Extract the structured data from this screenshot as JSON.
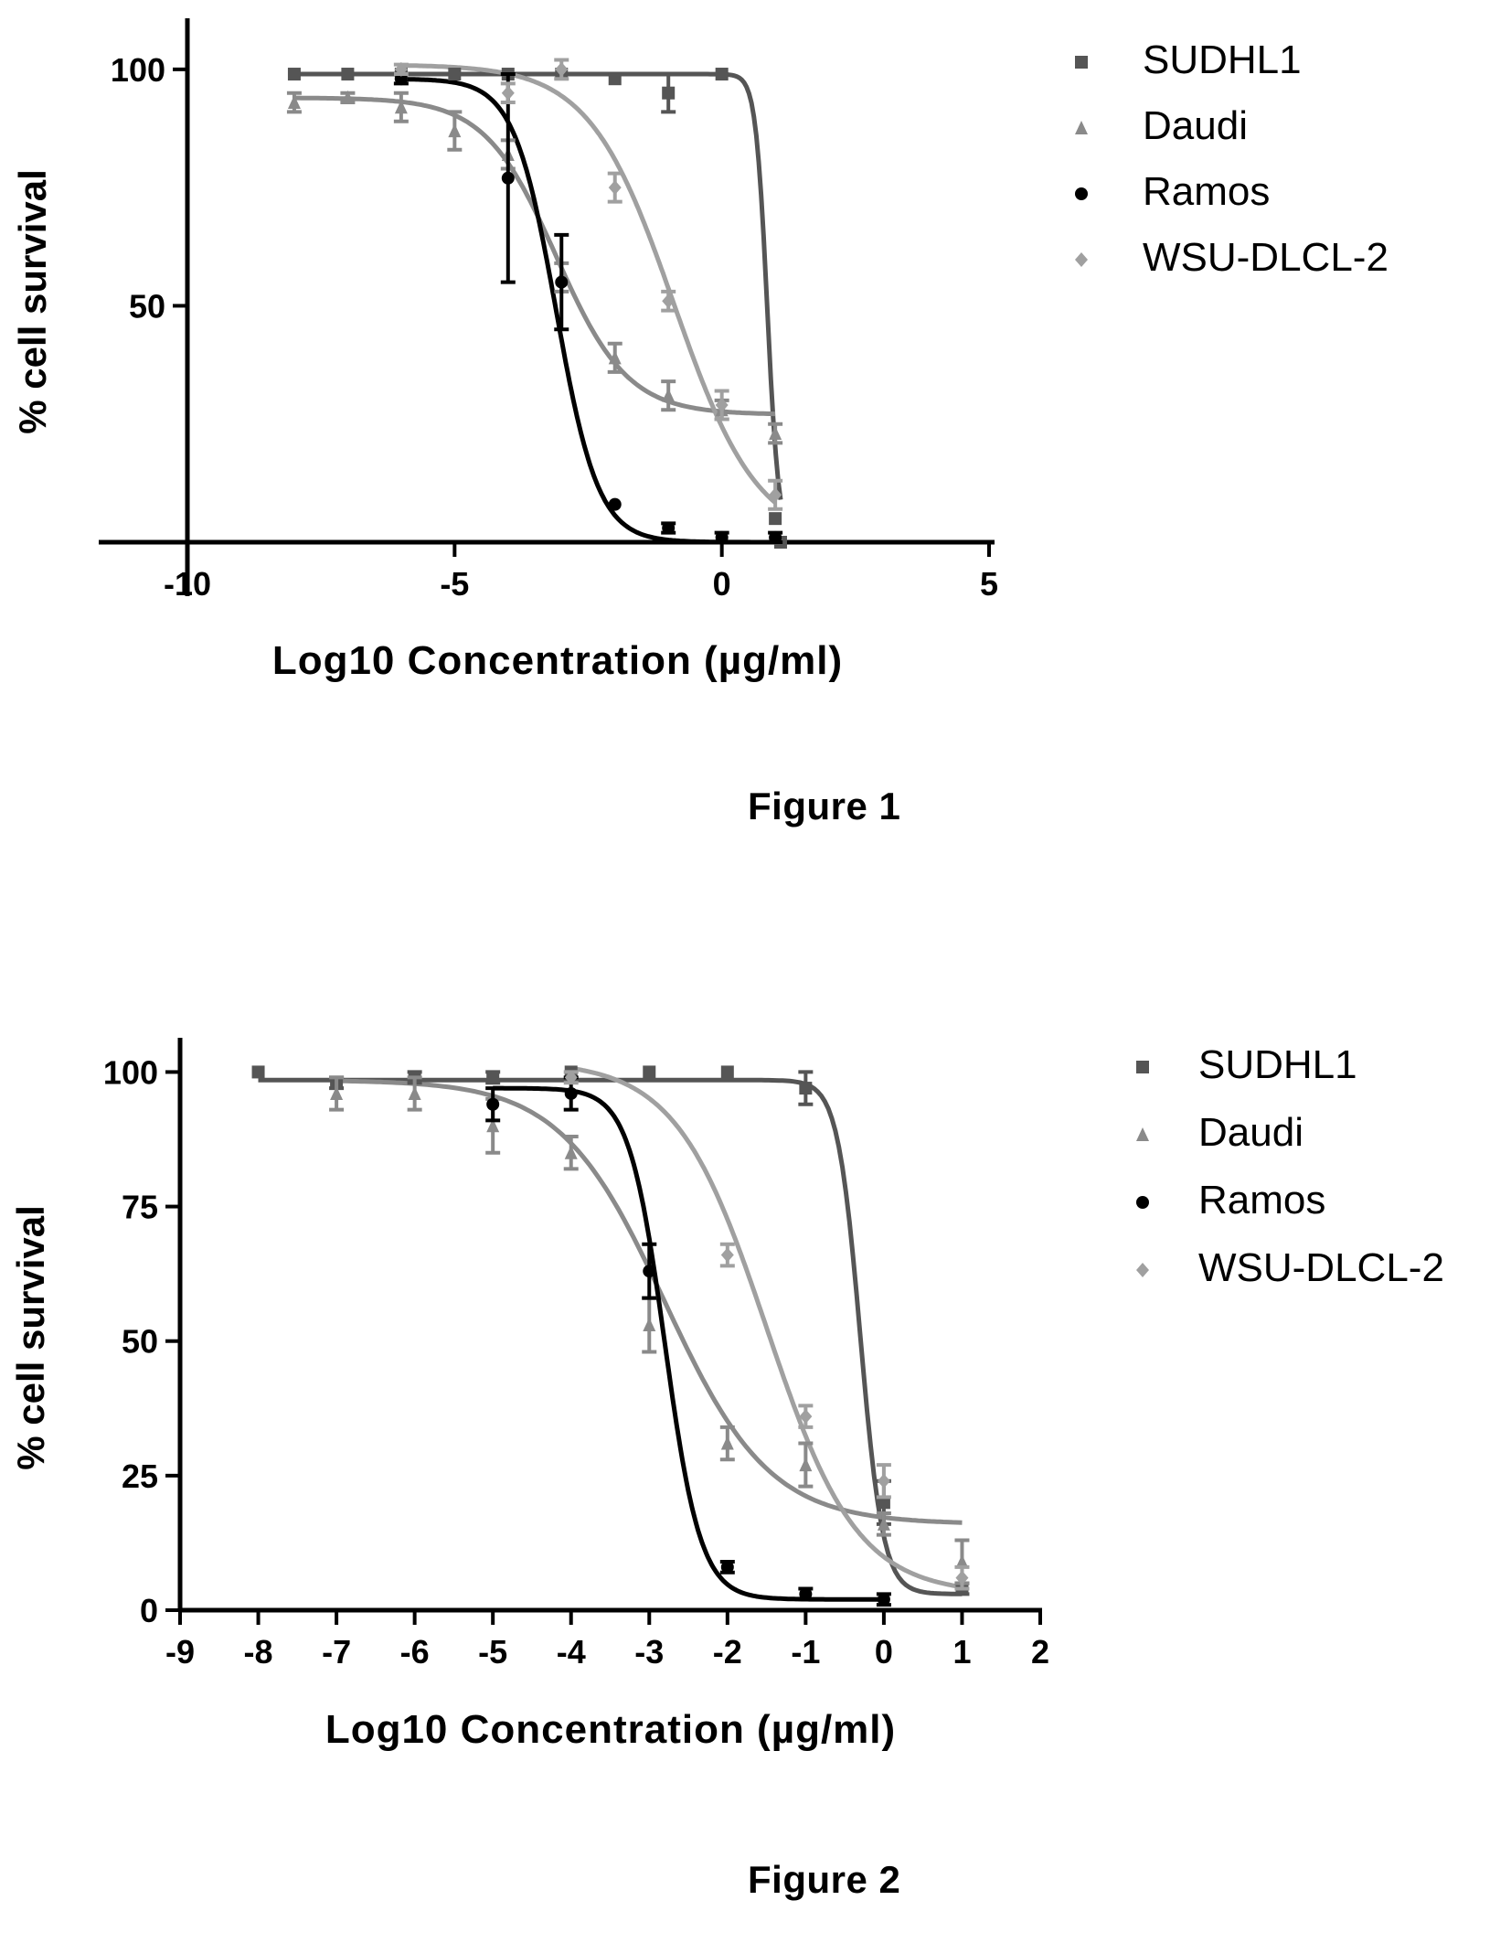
{
  "figures": [
    {
      "caption": "Figure 1",
      "chart_data": {
        "type": "scatter",
        "title": "",
        "xlabel": "Log10 Concentration (µg/ml)",
        "ylabel": "% cell survival",
        "xlim": [
          -10,
          5
        ],
        "ylim": [
          0,
          105
        ],
        "x_ticks": [
          -10,
          -5,
          0,
          5
        ],
        "x_tick_labels": [
          "-10",
          "-5",
          "0",
          "5"
        ],
        "y_ticks": [
          50,
          100
        ],
        "y_tick_labels": [
          "50",
          "100"
        ],
        "grid": false,
        "legend_position": "top-right",
        "fit_curves": true,
        "series": [
          {
            "name": "SUDHL1",
            "marker": "square",
            "color": "#555555",
            "x": [
              -8,
              -7,
              -6,
              -5,
              -4,
              -3,
              -2,
              -1,
              0,
              1,
              1.1
            ],
            "y": [
              99,
              99,
              99,
              99,
              99,
              99,
              98,
              95,
              99,
              5,
              0
            ],
            "err": [
              0,
              0,
              0,
              0,
              0,
              0,
              0,
              4,
              0,
              0,
              0
            ],
            "fit": {
              "top": 99,
              "bottom": 0,
              "logec50": 0.85,
              "hill": -4
            }
          },
          {
            "name": "Daudi",
            "marker": "triangle",
            "color": "#8a8a8a",
            "x": [
              -8,
              -7,
              -6,
              -5,
              -4,
              -3,
              -2,
              -1,
              0,
              1
            ],
            "y": [
              93,
              94,
              92,
              87,
              82,
              56,
              39,
              31,
              28,
              23
            ],
            "err": [
              2,
              1,
              3,
              4,
              3,
              3,
              3,
              3,
              2,
              2
            ],
            "fit": {
              "top": 94,
              "bottom": 27,
              "logec50": -3.1,
              "hill": -0.65
            }
          },
          {
            "name": "Ramos",
            "marker": "circle",
            "color": "#000000",
            "x": [
              -6,
              -4,
              -3,
              -2,
              -1,
              0,
              1
            ],
            "y": [
              98,
              77,
              55,
              8,
              3,
              1,
              1
            ],
            "err": [
              1,
              22,
              10,
              0,
              1,
              1,
              1
            ],
            "fit": {
              "top": 98,
              "bottom": 0,
              "logec50": -3.1,
              "hill": -1.1
            }
          },
          {
            "name": "WSU-DLCL-2",
            "marker": "diamond",
            "color": "#a0a0a0",
            "x": [
              -6,
              -4,
              -3,
              -2,
              -1,
              0,
              1
            ],
            "y": [
              100,
              95,
              100,
              75,
              51,
              29,
              10
            ],
            "err": [
              1,
              2,
              2,
              3,
              2,
              3,
              3
            ],
            "fit": {
              "top": 101,
              "bottom": 0,
              "logec50": -0.9,
              "hill": -0.55
            }
          }
        ]
      }
    },
    {
      "caption": "Figure 2",
      "chart_data": {
        "type": "scatter",
        "title": "",
        "xlabel": "Log10 Concentration (µg/ml)",
        "ylabel": "% cell survival",
        "xlim": [
          -9,
          2
        ],
        "ylim": [
          0,
          105
        ],
        "x_ticks": [
          -9,
          -8,
          -7,
          -6,
          -5,
          -4,
          -3,
          -2,
          -1,
          0,
          1,
          2
        ],
        "x_tick_labels": [
          "-9",
          "-8",
          "-7",
          "-6",
          "-5",
          "-4",
          "-3",
          "-2",
          "-1",
          "0",
          "1",
          "2"
        ],
        "y_ticks": [
          0,
          25,
          50,
          75,
          100
        ],
        "y_tick_labels": [
          "0",
          "25",
          "50",
          "75",
          "100"
        ],
        "grid": false,
        "legend_position": "top-right",
        "fit_curves": true,
        "series": [
          {
            "name": "SUDHL1",
            "marker": "square",
            "color": "#555555",
            "x": [
              -8,
              -7,
              -6,
              -5,
              -4,
              -3,
              -2,
              -1,
              0,
              1
            ],
            "y": [
              100,
              98,
              99,
              99,
              100,
              100,
              100,
              97,
              20,
              4
            ],
            "err": [
              0,
              1,
              1,
              1,
              0,
              0,
              0,
              3,
              4,
              1
            ],
            "fit": {
              "top": 98.5,
              "bottom": 3,
              "logec50": -0.3,
              "hill": -3
            }
          },
          {
            "name": "Daudi",
            "marker": "triangle",
            "color": "#8a8a8a",
            "x": [
              -7,
              -6,
              -5,
              -4,
              -3,
              -2,
              -1,
              0,
              1
            ],
            "y": [
              96,
              96,
              90,
              85,
              53,
              31,
              27,
              16,
              9
            ],
            "err": [
              3,
              3,
              5,
              3,
              5,
              3,
              4,
              2,
              4
            ],
            "fit": {
              "top": 98.5,
              "bottom": 16,
              "logec50": -2.8,
              "hill": -0.65
            }
          },
          {
            "name": "Ramos",
            "marker": "circle",
            "color": "#000000",
            "x": [
              -5,
              -4,
              -3,
              -2,
              -1,
              0
            ],
            "y": [
              94,
              96,
              63,
              8,
              3,
              2
            ],
            "err": [
              3,
              3,
              5,
              1,
              1,
              1
            ],
            "fit": {
              "top": 97,
              "bottom": 2,
              "logec50": -2.8,
              "hill": -1.9
            }
          },
          {
            "name": "WSU-DLCL-2",
            "marker": "diamond",
            "color": "#a0a0a0",
            "x": [
              -4,
              -2,
              -1,
              0,
              1
            ],
            "y": [
              99,
              66,
              36,
              24,
              6
            ],
            "err": [
              1,
              2,
              2,
              3,
              2
            ],
            "fit": {
              "top": 102,
              "bottom": 3,
              "logec50": -1.5,
              "hill": -0.75
            }
          }
        ]
      }
    }
  ]
}
